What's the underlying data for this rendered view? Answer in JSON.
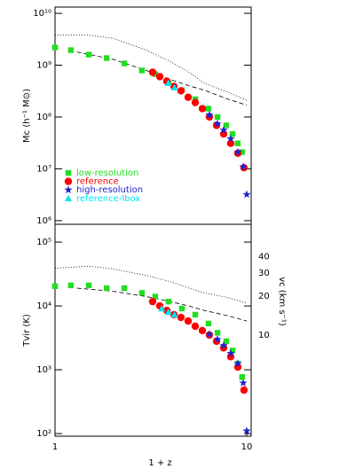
{
  "chart_data": [
    {
      "type": "scatter",
      "ylabel": "Mc (h⁻¹ M⊙)",
      "log_x": true,
      "log_y": true,
      "xlim": [
        1,
        10.55
      ],
      "ylim": [
        850000,
        13200000000
      ],
      "yticks": [
        {
          "value": 1000000,
          "label": "10⁶"
        },
        {
          "value": 10000000,
          "label": "10⁷"
        },
        {
          "value": 100000000,
          "label": "10⁸"
        },
        {
          "value": 1000000000,
          "label": "10⁹"
        },
        {
          "value": 10000000000,
          "label": "10¹⁰"
        }
      ],
      "legend": "lower left",
      "lines": [
        {
          "style": "dotted",
          "x": [
            1,
            1.5,
            2,
            3,
            4,
            5,
            6,
            7,
            8,
            10
          ],
          "values": [
            3800000000,
            3800000000,
            3300000000,
            1950000000,
            1170000000,
            730000000,
            450000000,
            360000000,
            300000000,
            210000000
          ]
        },
        {
          "style": "dashed",
          "x": [
            1.3,
            2,
            3,
            4,
            5,
            6,
            8,
            10
          ],
          "values": [
            1800000000,
            1300000000,
            790000000,
            530000000,
            400000000,
            330000000,
            220000000,
            170000000
          ]
        }
      ],
      "series": [
        {
          "name": "low-resolution",
          "marker": "square",
          "color": "#22dd22",
          "x": [
            1.0,
            1.21,
            1.5,
            1.86,
            2.3,
            2.84,
            3.33,
            3.91,
            4.59,
            5.39,
            6.32,
            7.04,
            7.82,
            8.43,
            8.98,
            9.46
          ],
          "values": [
            2200000000,
            1950000000,
            1600000000,
            1370000000,
            1080000000,
            790000000,
            670000000,
            450000000,
            330000000,
            220000000,
            145000000,
            100000000,
            69000000,
            47000000,
            31000000,
            21000000
          ]
        },
        {
          "name": "reference",
          "marker": "circle",
          "color": "#ff0000",
          "x": [
            3.23,
            3.52,
            3.83,
            4.17,
            4.54,
            4.95,
            5.39,
            5.87,
            6.39,
            6.96,
            7.58,
            8.25,
            8.99,
            9.68
          ],
          "values": [
            730000000,
            600000000,
            490000000,
            390000000,
            320000000,
            240000000,
            190000000,
            145000000,
            100000000,
            69000000,
            47000000,
            31000000,
            20000000,
            10500000
          ]
        },
        {
          "name": "high-resolution",
          "marker": "star",
          "color": "#2222cc",
          "x": [
            6.39,
            7.04,
            7.58,
            8.25,
            8.99,
            9.59,
            10.0
          ],
          "values": [
            110000000,
            74000000,
            56000000,
            38000000,
            21000000,
            11000000,
            3200000
          ]
        },
        {
          "name": "reference-lbox",
          "marker": "triangle",
          "color": "#00e5ee",
          "x": [
            3.9,
            4.2
          ],
          "values": [
            450000000,
            370000000
          ]
        }
      ]
    },
    {
      "type": "scatter",
      "xlabel": "1 + z",
      "ylabel": "Tvir (K)",
      "y2label": "vc (km s⁻¹)",
      "log_x": true,
      "log_y": true,
      "log_y2": true,
      "xlim": [
        1,
        10.55
      ],
      "xticks": [
        1,
        10
      ],
      "ylim": [
        91,
        190000
      ],
      "yticks": [
        {
          "value": 100,
          "label": "10²"
        },
        {
          "value": 1000,
          "label": "10³"
        },
        {
          "value": 10000,
          "label": "10⁴"
        },
        {
          "value": 100000,
          "label": "10⁵"
        }
      ],
      "y2lim": [
        1.68,
        70.8
      ],
      "y2ticks": [
        10,
        20,
        30,
        40
      ],
      "lines": [
        {
          "style": "dotted",
          "x": [
            1,
            1.5,
            2,
            3,
            4,
            5,
            6,
            8,
            10
          ],
          "values": [
            39000,
            42000,
            38000,
            30000,
            24000,
            19000,
            16000,
            13500,
            11000
          ]
        },
        {
          "style": "dashed",
          "x": [
            1.3,
            2,
            3,
            4,
            5,
            6,
            8,
            10
          ],
          "values": [
            19000,
            17000,
            14000,
            11700,
            10000,
            8500,
            7000,
            5800
          ]
        }
      ],
      "series": [
        {
          "marker": "square",
          "color": "#22dd22",
          "x": [
            1.0,
            1.21,
            1.5,
            1.86,
            2.3,
            2.84,
            3.33,
            3.91,
            4.59,
            5.39,
            6.32,
            7.04,
            7.82,
            8.43,
            8.98,
            9.46
          ],
          "values": [
            20400,
            21000,
            21000,
            19000,
            19000,
            16000,
            14000,
            11700,
            9100,
            7300,
            5300,
            3800,
            2800,
            2000,
            1250,
            770
          ]
        },
        {
          "marker": "circle",
          "color": "#ff0000",
          "x": [
            3.23,
            3.52,
            3.83,
            4.17,
            4.54,
            4.95,
            5.39,
            5.87,
            6.39,
            6.96,
            7.58,
            8.25,
            8.99,
            9.68
          ],
          "values": [
            11700,
            10000,
            8500,
            7300,
            6600,
            5800,
            4800,
            4100,
            3500,
            2800,
            2200,
            1600,
            1100,
            480
          ]
        },
        {
          "marker": "star",
          "color": "#2222cc",
          "x": [
            6.39,
            7.04,
            7.58,
            8.25,
            8.99,
            9.59,
            10.0
          ],
          "values": [
            3600,
            3000,
            2400,
            1800,
            1250,
            620,
            110
          ]
        },
        {
          "marker": "triangle",
          "color": "#00e5ee",
          "x": [
            3.6,
            3.9,
            4.2
          ],
          "values": [
            9100,
            8000,
            7300
          ]
        }
      ]
    }
  ]
}
